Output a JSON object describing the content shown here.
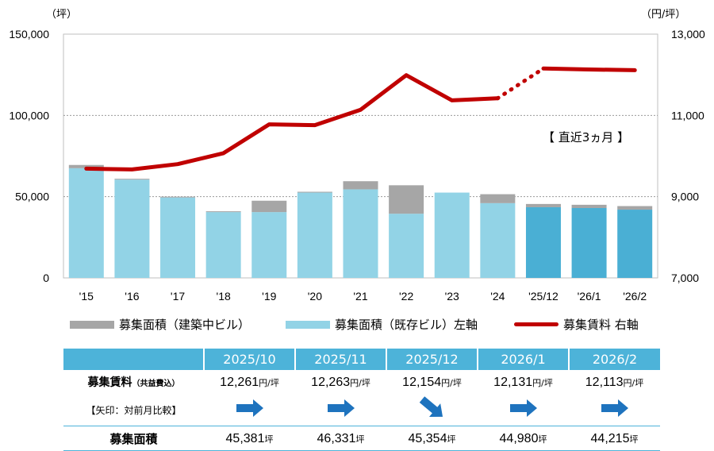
{
  "chart_data": {
    "type": "bar",
    "categories": [
      "'15",
      "'16",
      "'17",
      "'18",
      "'19",
      "'20",
      "'21",
      "'22",
      "'23",
      "'24",
      "'25/12",
      "'26/1",
      "'26/2"
    ],
    "left_axis": {
      "unit": "（坪）",
      "ylim": [
        0,
        150000
      ],
      "ticks": [
        "0",
        "50,000",
        "100,000",
        "150,000"
      ]
    },
    "right_axis": {
      "unit": "（円/坪）",
      "ylim": [
        7000,
        13000
      ],
      "ticks": [
        "7,000",
        "9,000",
        "11,000",
        "13,000"
      ]
    },
    "series": [
      {
        "name": "募集面積（既存ビル）左軸",
        "type": "bar-stack",
        "axis": "left",
        "values": [
          67500,
          60500,
          49500,
          40500,
          40500,
          52500,
          54500,
          39500,
          52500,
          46000,
          43500,
          43000,
          42000
        ],
        "color": "#92d3e6",
        "recent_color": "#4aafd4"
      },
      {
        "name": "募集面積（建築中ビル）",
        "type": "bar-stack",
        "axis": "left",
        "values": [
          2000,
          500,
          500,
          500,
          7000,
          500,
          5000,
          17500,
          0,
          5500,
          2000,
          2000,
          2200
        ],
        "color": "#a6a6a6"
      },
      {
        "name": "募集賃料 右軸",
        "type": "line",
        "axis": "right",
        "values": [
          9690,
          9670,
          9800,
          10070,
          10780,
          10760,
          11140,
          11990,
          11370,
          11420,
          12154,
          12131,
          12113
        ],
        "color": "#c00000"
      }
    ],
    "annotation": "【 直近3ヵ月 】",
    "grid": true,
    "legend_position": "bottom"
  },
  "legend": {
    "construction": "募集面積（建築中ビル）",
    "existing": "募集面積（既存ビル）左軸",
    "rent": "募集賃料 右軸"
  },
  "table": {
    "months": [
      "2025/10",
      "2025/11",
      "2025/12",
      "2026/1",
      "2026/2"
    ],
    "rent_label": "募集賃料",
    "rent_label_note": "（共益費込）",
    "arrow_label": "【矢印：対前月比較】",
    "area_label": "募集面積",
    "rent_values": [
      "12,261",
      "12,263",
      "12,154",
      "12,131",
      "12,113"
    ],
    "rent_unit": "円/坪",
    "arrows": [
      "right",
      "right",
      "down-right",
      "right",
      "right"
    ],
    "area_values": [
      "45,381",
      "46,331",
      "45,354",
      "44,980",
      "44,215"
    ],
    "area_unit": "坪"
  },
  "colors": {
    "accent": "#4db3d9",
    "arrow": "#1e73be",
    "rent_line": "#c00000"
  }
}
